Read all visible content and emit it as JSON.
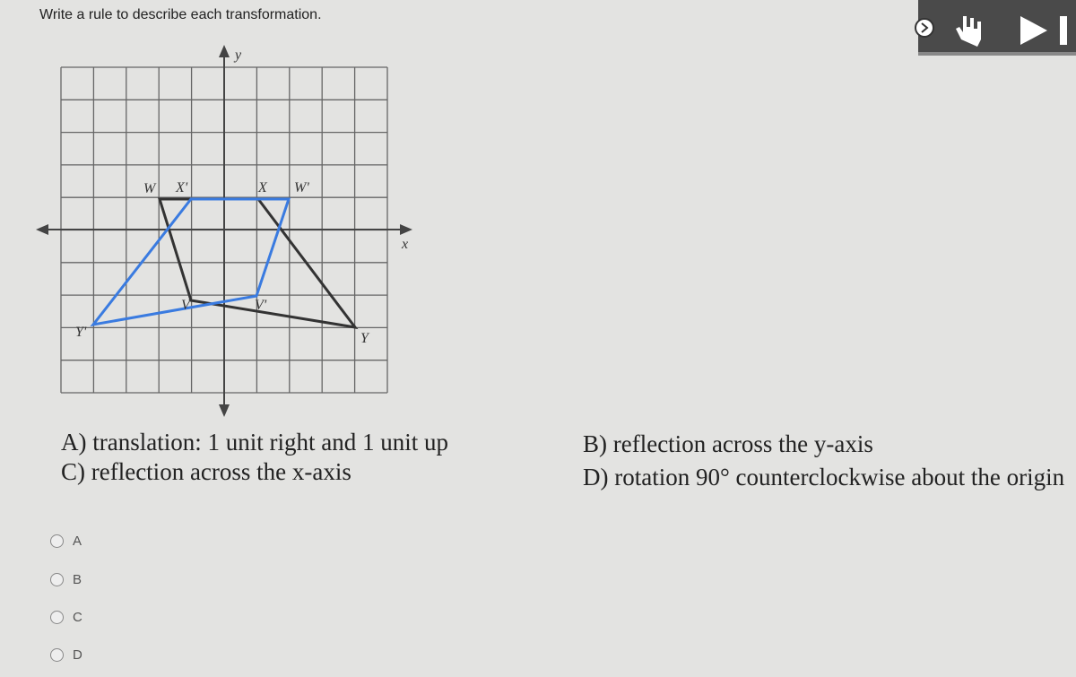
{
  "question": "Write a rule to describe each transformation.",
  "graph": {
    "y_axis_label": "y",
    "x_axis_label": "x",
    "point_labels": [
      "W",
      "X'",
      "X",
      "W'",
      "V",
      "V'",
      "Y'",
      "Y"
    ]
  },
  "options": [
    "A) translation: 1 unit right and 1 unit up",
    "B) reflection across the y-axis",
    "C) reflection across the x-axis",
    "D) rotation 90° counterclockwise about the origin"
  ],
  "choices": [
    "A",
    "B",
    "C",
    "D"
  ]
}
